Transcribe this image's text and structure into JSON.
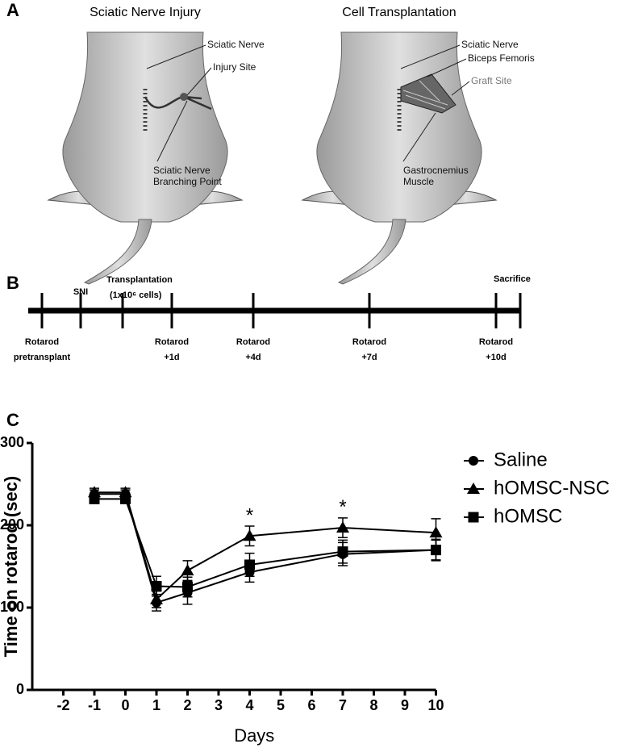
{
  "panels": {
    "a": {
      "letter": "A",
      "left_title": "Sciatic Nerve Injury",
      "right_title": "Cell Transplantation",
      "left_labels": {
        "nerve": "Sciatic Nerve",
        "injury": "Injury Site",
        "branch": [
          "Sciatic Nerve",
          "Branching Point"
        ]
      },
      "right_labels": {
        "nerve": "Sciatic Nerve",
        "biceps": "Biceps Femoris",
        "graft": "Graft Site",
        "gastro": [
          "Gastrocnemius",
          "Muscle"
        ]
      }
    },
    "b": {
      "letter": "B",
      "above": [
        "SNI",
        [
          "Transplantation",
          "(1x10⁶ cells)"
        ],
        "Sacrifice"
      ],
      "below": [
        [
          "Rotarod",
          "pretransplant"
        ],
        [
          "Rotarod",
          "+1d"
        ],
        [
          "Rotarod",
          "+4d"
        ],
        [
          "Rotarod",
          "+7d"
        ],
        [
          "Rotarod",
          "+10d"
        ]
      ]
    },
    "c": {
      "letter": "C"
    }
  },
  "chart_data": {
    "type": "line",
    "x_label": "Days",
    "y_label": "Time on rotarod (sec)",
    "x": [
      -1,
      0,
      1,
      2,
      4,
      7,
      10
    ],
    "xlim": [
      -3,
      10
    ],
    "xticks": [
      -2,
      -1,
      0,
      1,
      2,
      3,
      4,
      5,
      6,
      7,
      8,
      9,
      10
    ],
    "ylim": [
      0,
      300
    ],
    "yticks": [
      0,
      100,
      200,
      300
    ],
    "series": [
      {
        "name": "Saline",
        "marker": "circle",
        "color": "#000000",
        "values": [
          238,
          238,
          106,
          118,
          143,
          165,
          170
        ],
        "errors": [
          5,
          5,
          10,
          14,
          12,
          14,
          13
        ]
      },
      {
        "name": "hOMSC-NSC",
        "marker": "triangle",
        "color": "#000000",
        "values": [
          240,
          240,
          110,
          145,
          187,
          197,
          191
        ],
        "errors": [
          5,
          5,
          10,
          12,
          12,
          12,
          17
        ]
      },
      {
        "name": "hOMSC",
        "marker": "square",
        "color": "#000000",
        "values": [
          232,
          232,
          126,
          125,
          152,
          168,
          170
        ],
        "errors": [
          5,
          5,
          12,
          12,
          14,
          14,
          12
        ]
      }
    ],
    "annotations": [
      {
        "text": "*",
        "x": 4
      },
      {
        "text": "*",
        "x": 7
      }
    ]
  }
}
